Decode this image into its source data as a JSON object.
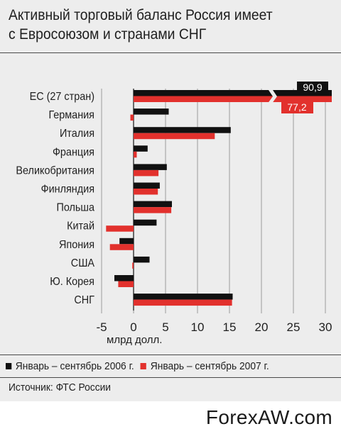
{
  "title": "Активный торговый баланс Россия имеет\nс Евросоюзом и странами СНГ",
  "chart_data": {
    "type": "bar",
    "orientation": "horizontal",
    "categories": [
      "ЕС (27 стран)",
      "Германия",
      "Италия",
      "Франция",
      "Великобритания",
      "Финляндия",
      "Польша",
      "Китай",
      "Япония",
      "США",
      "Ю. Корея",
      "СНГ"
    ],
    "series": [
      {
        "name": "Январь – сентябрь 2006 г.",
        "color": "#111111",
        "values": [
          90.9,
          5.5,
          15.2,
          2.2,
          5.2,
          4.1,
          6.0,
          3.6,
          -2.2,
          2.5,
          -3.0,
          15.5
        ]
      },
      {
        "name": "Январь – сентябрь 2007 г.",
        "color": "#e2312d",
        "values": [
          77.2,
          -0.5,
          12.7,
          0.5,
          3.9,
          3.8,
          5.9,
          -4.3,
          -3.7,
          -0.2,
          -2.4,
          15.4
        ]
      }
    ],
    "xlabel": "млрд долл.",
    "xlim": [
      -5,
      30
    ],
    "xticks": [
      -5,
      0,
      5,
      10,
      15,
      20,
      25,
      30
    ],
    "axis_break": true,
    "data_labels": {
      "ЕС (27 стран)": [
        "90,9",
        "77,2"
      ]
    },
    "legend_position": "bottom"
  },
  "legend": [
    {
      "label": "Январь – сентябрь 2006 г.",
      "color": "#111111"
    },
    {
      "label": "Январь – сентябрь 2007 г.",
      "color": "#e2312d"
    }
  ],
  "source": "Источник: ФТС России",
  "watermark": "ForexAW.com"
}
